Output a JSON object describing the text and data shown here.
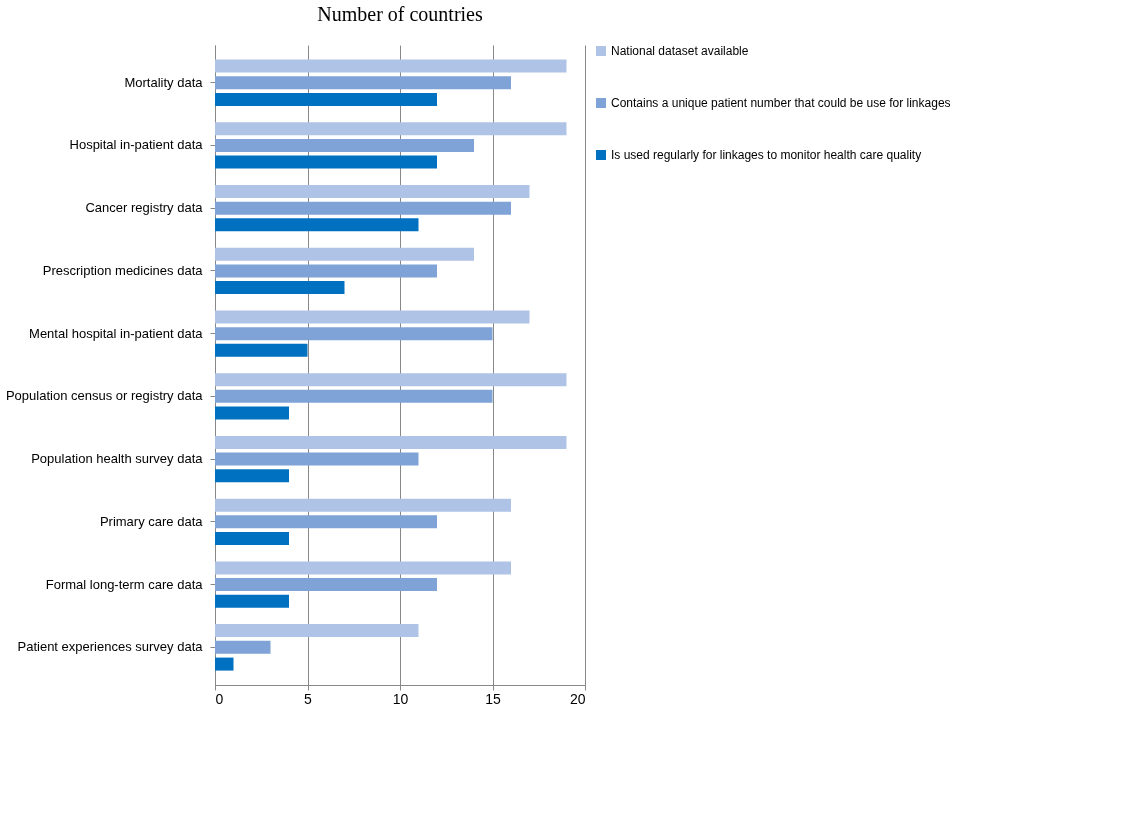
{
  "chart_data": {
    "type": "bar",
    "orientation": "horizontal",
    "title": "Number of countries",
    "categories": [
      "Mortality data",
      "Hospital in-patient data",
      "Cancer registry data",
      "Prescription medicines data",
      "Mental hospital in-patient data",
      "Population census or registry data",
      "Population health survey data",
      "Primary care data",
      "Formal long-term care data",
      "Patient experiences survey data"
    ],
    "series": [
      {
        "name": "National dataset available",
        "color": "#aec3e6",
        "values": [
          19,
          19,
          17,
          14,
          17,
          19,
          19,
          16,
          16,
          11
        ]
      },
      {
        "name": "Contains a unique patient number that could be use for linkages",
        "color": "#7fa3d6",
        "values": [
          16,
          14,
          16,
          12,
          15,
          15,
          11,
          12,
          12,
          3
        ]
      },
      {
        "name": "Is used regularly for linkages to monitor health care quality",
        "color": "#0070c0",
        "values": [
          12,
          12,
          11,
          7,
          5,
          4,
          4,
          4,
          4,
          1
        ]
      }
    ],
    "xlim": [
      0,
      20
    ],
    "xticks": [
      0,
      5,
      10,
      15,
      20
    ],
    "grid": "x",
    "legend": "right"
  }
}
